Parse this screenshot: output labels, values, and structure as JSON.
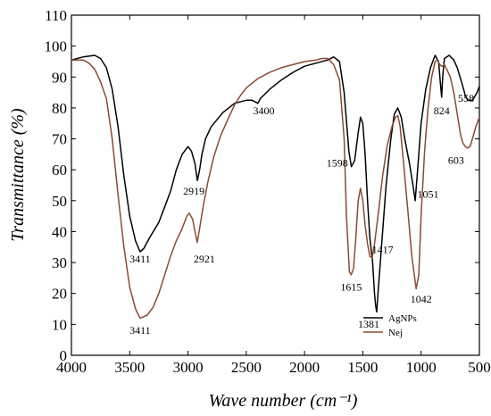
{
  "chart_data": {
    "type": "line",
    "title": "",
    "xlabel": "Wave number (cm⁻¹)",
    "ylabel": "Transmittance (%)",
    "xlim": [
      4000,
      500
    ],
    "ylim": [
      0,
      110
    ],
    "x_ticks": [
      4000,
      3500,
      3000,
      2500,
      2000,
      1500,
      1000,
      500
    ],
    "y_ticks": [
      0,
      10,
      20,
      30,
      40,
      50,
      60,
      70,
      80,
      90,
      100,
      110
    ],
    "grid": false,
    "legend_position": "bottom-right",
    "series": [
      {
        "name": "AgNPs",
        "color": "#000000",
        "points": [
          [
            4000,
            95.5
          ],
          [
            3900,
            96.5
          ],
          [
            3800,
            97
          ],
          [
            3750,
            96
          ],
          [
            3700,
            93
          ],
          [
            3650,
            86
          ],
          [
            3600,
            74
          ],
          [
            3550,
            58
          ],
          [
            3500,
            45
          ],
          [
            3450,
            37
          ],
          [
            3411,
            33.5
          ],
          [
            3380,
            34.5
          ],
          [
            3330,
            38
          ],
          [
            3250,
            43
          ],
          [
            3200,
            48
          ],
          [
            3150,
            53
          ],
          [
            3100,
            60
          ],
          [
            3050,
            65
          ],
          [
            3000,
            67.5
          ],
          [
            2970,
            66
          ],
          [
            2940,
            62
          ],
          [
            2919,
            56.5
          ],
          [
            2900,
            60
          ],
          [
            2880,
            65
          ],
          [
            2850,
            70
          ],
          [
            2800,
            74
          ],
          [
            2700,
            78.5
          ],
          [
            2600,
            81.5
          ],
          [
            2500,
            82.5
          ],
          [
            2450,
            82.5
          ],
          [
            2400,
            81.5
          ],
          [
            2380,
            83
          ],
          [
            2300,
            86
          ],
          [
            2200,
            89
          ],
          [
            2100,
            91.5
          ],
          [
            2000,
            93.5
          ],
          [
            1900,
            94.5
          ],
          [
            1800,
            95.5
          ],
          [
            1750,
            96.5
          ],
          [
            1700,
            95
          ],
          [
            1660,
            85
          ],
          [
            1620,
            66
          ],
          [
            1598,
            61
          ],
          [
            1570,
            63
          ],
          [
            1540,
            72
          ],
          [
            1520,
            77
          ],
          [
            1500,
            75
          ],
          [
            1480,
            65
          ],
          [
            1460,
            50
          ],
          [
            1440,
            38
          ],
          [
            1417,
            30.5
          ],
          [
            1400,
            20
          ],
          [
            1390,
            16
          ],
          [
            1381,
            14
          ],
          [
            1370,
            20
          ],
          [
            1340,
            35
          ],
          [
            1300,
            55
          ],
          [
            1260,
            70
          ],
          [
            1230,
            78
          ],
          [
            1200,
            80
          ],
          [
            1170,
            77
          ],
          [
            1140,
            70
          ],
          [
            1100,
            62
          ],
          [
            1070,
            55
          ],
          [
            1051,
            50
          ],
          [
            1030,
            60
          ],
          [
            1000,
            75
          ],
          [
            960,
            86
          ],
          [
            920,
            93
          ],
          [
            880,
            97
          ],
          [
            850,
            95
          ],
          [
            835,
            88
          ],
          [
            824,
            83.5
          ],
          [
            815,
            90
          ],
          [
            800,
            96
          ],
          [
            760,
            97
          ],
          [
            720,
            95.5
          ],
          [
            690,
            93
          ],
          [
            650,
            88
          ],
          [
            620,
            84
          ],
          [
            600,
            82.5
          ],
          [
            558,
            82.5
          ],
          [
            520,
            85
          ],
          [
            500,
            87
          ]
        ]
      },
      {
        "name": "Nej",
        "color": "#8b4a32",
        "points": [
          [
            4000,
            95.5
          ],
          [
            3900,
            95.5
          ],
          [
            3850,
            94.5
          ],
          [
            3800,
            92.5
          ],
          [
            3750,
            88.5
          ],
          [
            3700,
            83
          ],
          [
            3650,
            70
          ],
          [
            3600,
            52
          ],
          [
            3550,
            35
          ],
          [
            3500,
            22
          ],
          [
            3450,
            15
          ],
          [
            3411,
            12
          ],
          [
            3350,
            13
          ],
          [
            3300,
            15.5
          ],
          [
            3250,
            20
          ],
          [
            3200,
            26
          ],
          [
            3150,
            32
          ],
          [
            3100,
            37
          ],
          [
            3050,
            41
          ],
          [
            3010,
            45
          ],
          [
            2990,
            46
          ],
          [
            2960,
            44
          ],
          [
            2940,
            40
          ],
          [
            2921,
            36.5
          ],
          [
            2900,
            41
          ],
          [
            2870,
            48
          ],
          [
            2830,
            56
          ],
          [
            2780,
            64
          ],
          [
            2720,
            71
          ],
          [
            2650,
            77
          ],
          [
            2600,
            81
          ],
          [
            2550,
            84
          ],
          [
            2500,
            86.5
          ],
          [
            2400,
            89.5
          ],
          [
            2300,
            91.5
          ],
          [
            2200,
            93
          ],
          [
            2100,
            94
          ],
          [
            2000,
            95
          ],
          [
            1900,
            95.5
          ],
          [
            1850,
            96
          ],
          [
            1800,
            96
          ],
          [
            1750,
            94
          ],
          [
            1700,
            89
          ],
          [
            1660,
            70
          ],
          [
            1640,
            45
          ],
          [
            1615,
            27
          ],
          [
            1600,
            26
          ],
          [
            1580,
            28
          ],
          [
            1560,
            38
          ],
          [
            1540,
            50
          ],
          [
            1520,
            54
          ],
          [
            1500,
            50
          ],
          [
            1480,
            42
          ],
          [
            1460,
            36
          ],
          [
            1440,
            32
          ],
          [
            1420,
            31.5
          ],
          [
            1400,
            36
          ],
          [
            1370,
            45
          ],
          [
            1330,
            58
          ],
          [
            1290,
            68
          ],
          [
            1250,
            74
          ],
          [
            1220,
            77
          ],
          [
            1200,
            77.5
          ],
          [
            1180,
            74
          ],
          [
            1150,
            62
          ],
          [
            1110,
            45
          ],
          [
            1080,
            32
          ],
          [
            1042,
            21.5
          ],
          [
            1020,
            26
          ],
          [
            1000,
            45
          ],
          [
            970,
            66
          ],
          [
            940,
            80
          ],
          [
            910,
            90
          ],
          [
            880,
            95
          ],
          [
            860,
            95.5
          ],
          [
            840,
            94
          ],
          [
            820,
            93.5
          ],
          [
            800,
            94
          ],
          [
            780,
            92.5
          ],
          [
            750,
            90
          ],
          [
            720,
            85
          ],
          [
            690,
            78
          ],
          [
            660,
            71
          ],
          [
            640,
            68.5
          ],
          [
            620,
            67.5
          ],
          [
            603,
            67
          ],
          [
            580,
            67.5
          ],
          [
            560,
            70
          ],
          [
            530,
            74
          ],
          [
            500,
            77
          ]
        ]
      }
    ],
    "annotations": [
      {
        "label": "3411",
        "x": 3411,
        "y": 30,
        "series": "AgNPs"
      },
      {
        "label": "2919",
        "x": 2950,
        "y": 52,
        "series": "AgNPs"
      },
      {
        "label": "3400",
        "x": 2350,
        "y": 78,
        "series": "AgNPs"
      },
      {
        "label": "1598",
        "x": 1720,
        "y": 61,
        "series": "AgNPs"
      },
      {
        "label": "1417",
        "x": 1330,
        "y": 33,
        "series": "AgNPs"
      },
      {
        "label": "1381",
        "x": 1450,
        "y": 9,
        "series": "AgNPs"
      },
      {
        "label": "1051",
        "x": 940,
        "y": 51,
        "series": "AgNPs"
      },
      {
        "label": "824",
        "x": 824,
        "y": 78,
        "series": "AgNPs"
      },
      {
        "label": "558",
        "x": 615,
        "y": 82,
        "series": "AgNPs"
      },
      {
        "label": "3411",
        "x": 3411,
        "y": 7,
        "series": "Nej"
      },
      {
        "label": "2921",
        "x": 2860,
        "y": 30,
        "series": "Nej"
      },
      {
        "label": "1615",
        "x": 1600,
        "y": 21,
        "series": "Nej"
      },
      {
        "label": "1042",
        "x": 1000,
        "y": 17,
        "series": "Nej"
      },
      {
        "label": "603",
        "x": 700,
        "y": 62,
        "series": "Nej"
      }
    ]
  }
}
